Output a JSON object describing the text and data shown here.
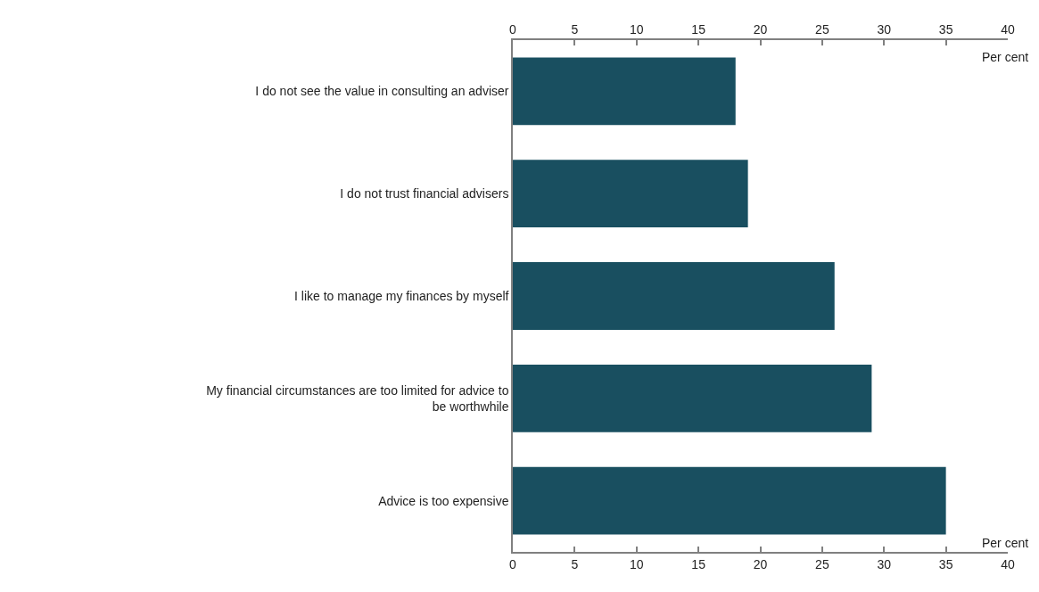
{
  "chart_data": {
    "type": "bar",
    "orientation": "horizontal",
    "categories": [
      "I do not see the value in consulting an adviser",
      "I do not trust financial advisers",
      "I like to manage my finances by myself",
      "My financial circumstances are too limited for advice to be worthwhile",
      "Advice is too expensive"
    ],
    "values": [
      18,
      19,
      26,
      29,
      35
    ],
    "color": "#194f60",
    "xlabel": "Per cent",
    "x2label": "Per cent",
    "xlim": [
      0,
      40
    ],
    "xticks": [
      0,
      5,
      10,
      15,
      20,
      25,
      30,
      35,
      40
    ],
    "x2lim": [
      0,
      40
    ],
    "x2ticks": [
      0,
      5,
      10,
      15,
      20,
      25,
      30,
      35,
      40
    ]
  }
}
